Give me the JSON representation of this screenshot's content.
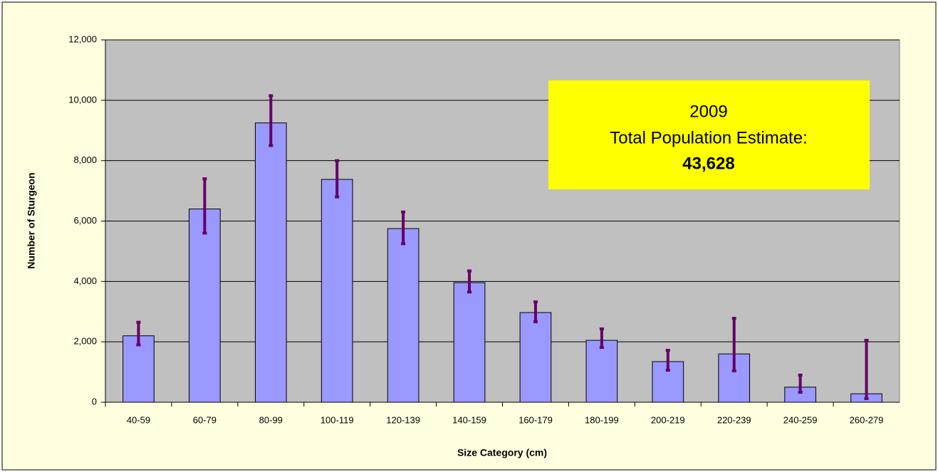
{
  "chart_data": {
    "type": "bar",
    "categories": [
      "40-59",
      "60-79",
      "80-99",
      "100-119",
      "120-139",
      "140-159",
      "160-179",
      "180-199",
      "200-219",
      "220-239",
      "240-259",
      "260-279"
    ],
    "values": [
      2200,
      6400,
      9250,
      7380,
      5750,
      3960,
      2970,
      2050,
      1345,
      1600,
      500,
      280
    ],
    "errors_minus": [
      300,
      800,
      750,
      580,
      500,
      310,
      305,
      235,
      285,
      560,
      170,
      160
    ],
    "errors_plus": [
      450,
      1000,
      900,
      620,
      550,
      390,
      355,
      380,
      375,
      1180,
      400,
      1770
    ],
    "color": "#9999ff",
    "error_color": "#660066",
    "plot_color": "#c0c0c0",
    "ylim": [
      0,
      12000
    ],
    "yticks": [
      0,
      {
        "value": 2000,
        "label": "2,000"
      },
      {
        "value": 4000,
        "label": "4,000"
      },
      {
        "value": 6000,
        "label": "6,000"
      },
      {
        "value": 8000,
        "label": "8,000"
      },
      {
        "value": 10000,
        "label": "10,000"
      },
      {
        "value": 12000,
        "label": "12,000"
      }
    ],
    "grid": true,
    "xlabel": "Size Category (cm)",
    "ylabel": "Number of Sturgeon",
    "annotation": {
      "year": "2009",
      "text": "Total Population Estimate:",
      "total": "43,628"
    }
  }
}
